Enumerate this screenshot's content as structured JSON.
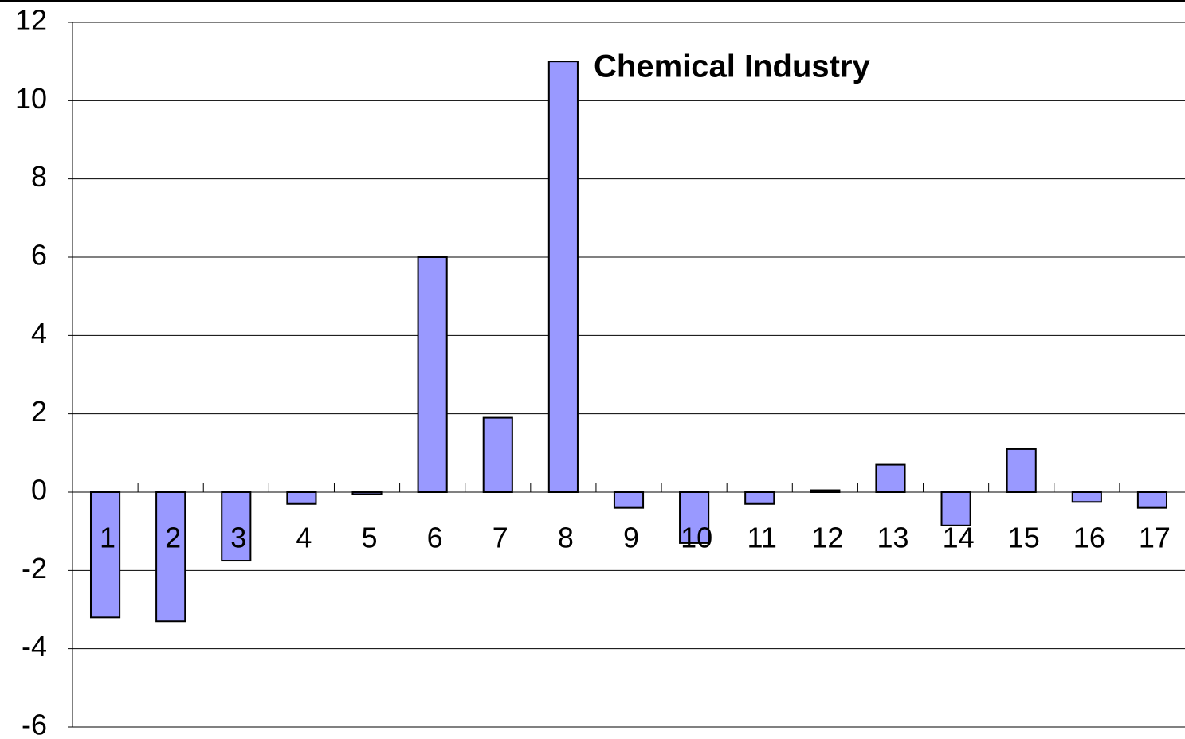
{
  "chart_data": {
    "type": "bar",
    "annotation": "Chemical Industry",
    "categories": [
      "1",
      "2",
      "3",
      "4",
      "5",
      "6",
      "7",
      "8",
      "9",
      "10",
      "11",
      "12",
      "13",
      "14",
      "15",
      "16",
      "17"
    ],
    "values": [
      -3.2,
      -3.3,
      -1.75,
      -0.3,
      -0.05,
      6.0,
      1.9,
      11.0,
      -0.4,
      -1.3,
      -0.3,
      0.05,
      0.7,
      -0.85,
      1.1,
      -0.25,
      -0.4
    ],
    "color": "#9999ff",
    "ylim": [
      -6,
      12
    ],
    "yticks": [
      -6,
      -4,
      -2,
      0,
      2,
      4,
      6,
      8,
      10,
      12
    ],
    "grid": true
  }
}
